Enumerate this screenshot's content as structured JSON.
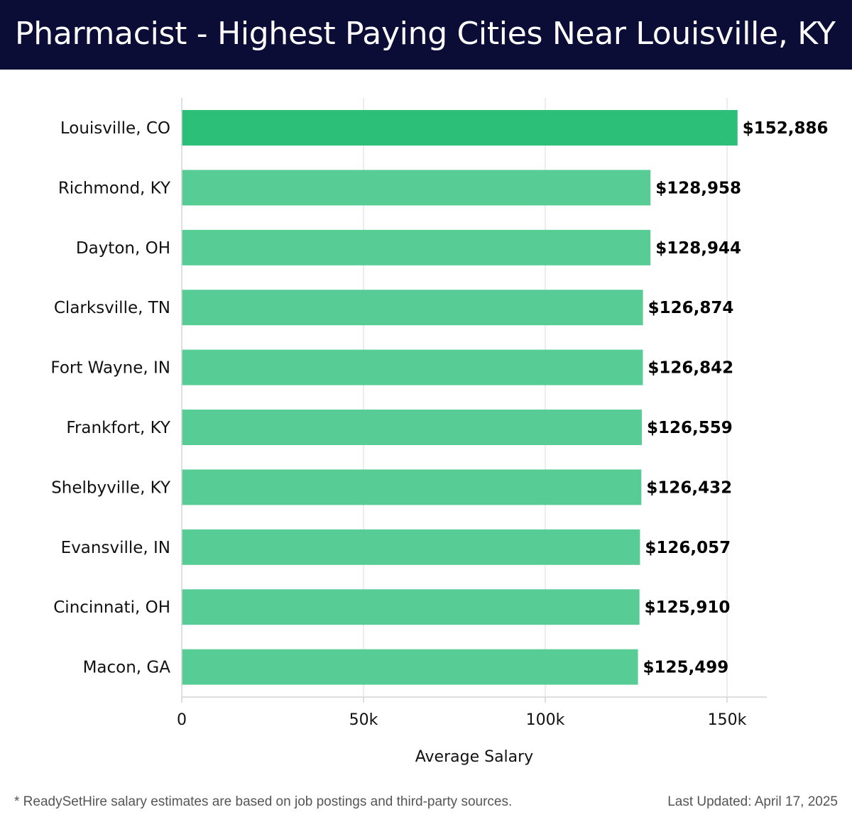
{
  "header": {
    "title": "Pharmacist - Highest Paying Cities Near Louisville, KY"
  },
  "chart_data": {
    "type": "bar",
    "orientation": "horizontal",
    "categories": [
      "Louisville, CO",
      "Richmond, KY",
      "Dayton, OH",
      "Clarksville, TN",
      "Fort Wayne, IN",
      "Frankfort, KY",
      "Shelbyville, KY",
      "Evansville, IN",
      "Cincinnati, OH",
      "Macon, GA"
    ],
    "values": [
      152886,
      128958,
      128944,
      126874,
      126842,
      126559,
      126432,
      126057,
      125910,
      125499
    ],
    "value_labels": [
      "$152,886",
      "$128,958",
      "$128,944",
      "$126,874",
      "$126,842",
      "$126,559",
      "$126,432",
      "$126,057",
      "$125,910",
      "$125,499"
    ],
    "xlabel": "Average Salary",
    "ylabel": "",
    "xlim": [
      0,
      160000
    ],
    "xticks": [
      0,
      50000,
      100000,
      150000
    ],
    "xtick_labels": [
      "0",
      "50k",
      "100k",
      "150k"
    ],
    "grid": "vertical",
    "colors": {
      "highlight": "#2bbf77",
      "bar": "#57cd95",
      "grid": "#e6e6e6",
      "axis": "#d4d4d4"
    }
  },
  "footer": {
    "note": "* ReadySetHire salary estimates are based on job postings and third-party sources.",
    "updated": "Last Updated: April 17, 2025"
  }
}
